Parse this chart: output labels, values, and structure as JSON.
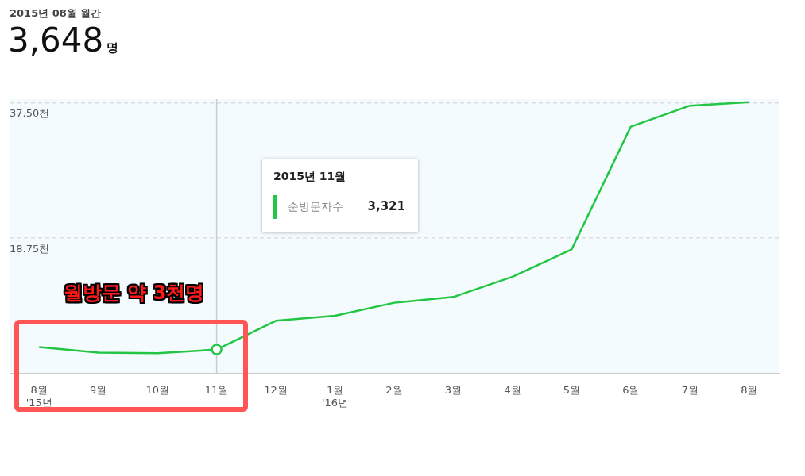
{
  "chart_data": {
    "type": "line",
    "title": "2015년 08월 월간",
    "subtitle": "3,648",
    "categories": [
      "8월\n'15년",
      "9월",
      "10월",
      "11월",
      "12월",
      "1월\n'16년",
      "2월",
      "3월",
      "4월",
      "5월",
      "6월",
      "7월",
      "8월"
    ],
    "series": [
      {
        "color": "#22c642",
        "values": [
          3.648,
          2.9,
          2.8,
          3.321,
          7.3,
          8.0,
          9.8,
          10.6,
          13.4,
          17.2,
          34.2,
          37.1,
          37.6
        ]
      }
    ],
    "ylim": [
      0,
      38
    ],
    "yticks": [
      {
        "value": 18.75,
        "label": "18.75천"
      },
      {
        "value": 37.5,
        "label": "37.50천"
      }
    ],
    "grid": "y",
    "legend": false,
    "marker": "none",
    "line_style": "solid",
    "ref_lines": [
      {
        "axis": "x",
        "value": "11월",
        "color": "#cccccc"
      }
    ],
    "annotations": [
      "명",
      "월방문 약 3천명",
      "2015년 11월",
      "순방문자수",
      "3,321"
    ]
  }
}
